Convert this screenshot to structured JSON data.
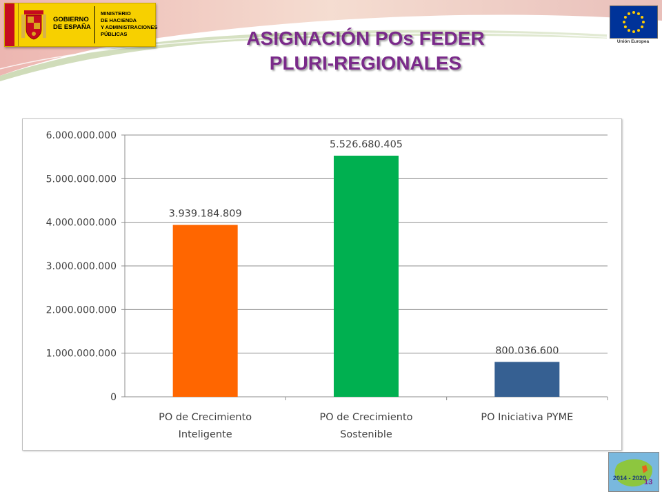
{
  "header": {
    "gov_name": "GOBIERNO\nDE ESPAÑA",
    "ministry": "MINISTERIO\nDE HACIENDA\nY ADMINISTRACIONES\nPÚBLICAS",
    "eu_label": "Unión Europea"
  },
  "title": {
    "line1": "ASIGNACIÓN POs FEDER",
    "line2": "PLURI-REGIONALES"
  },
  "page_number": "13",
  "corner_logo_text": "2014 - 2020",
  "colors": {
    "title": "#7a2a8a",
    "bar1": "#ff6600",
    "bar2": "#00b050",
    "bar3": "#366092"
  },
  "chart_data": {
    "type": "bar",
    "categories": [
      [
        "PO de Crecimiento",
        "Inteligente"
      ],
      [
        "PO de Crecimiento",
        "Sostenible"
      ],
      [
        "PO Iniciativa PYME"
      ]
    ],
    "values": [
      3939184809,
      5526680405,
      800036600
    ],
    "data_labels": [
      "3.939.184.809",
      "5.526.680.405",
      "800.036.600"
    ],
    "bar_colors": [
      "#ff6600",
      "#00b050",
      "#366092"
    ],
    "ylim": [
      0,
      6000000000
    ],
    "yticks": [
      {
        "value": 0,
        "label": "0"
      },
      {
        "value": 1000000000,
        "label": "1.000.000.000"
      },
      {
        "value": 2000000000,
        "label": "2.000.000.000"
      },
      {
        "value": 3000000000,
        "label": "3.000.000.000"
      },
      {
        "value": 4000000000,
        "label": "4.000.000.000"
      },
      {
        "value": 5000000000,
        "label": "5.000.000.000"
      },
      {
        "value": 6000000000,
        "label": "6.000.000.000"
      }
    ],
    "grid": true,
    "legend": "none"
  }
}
